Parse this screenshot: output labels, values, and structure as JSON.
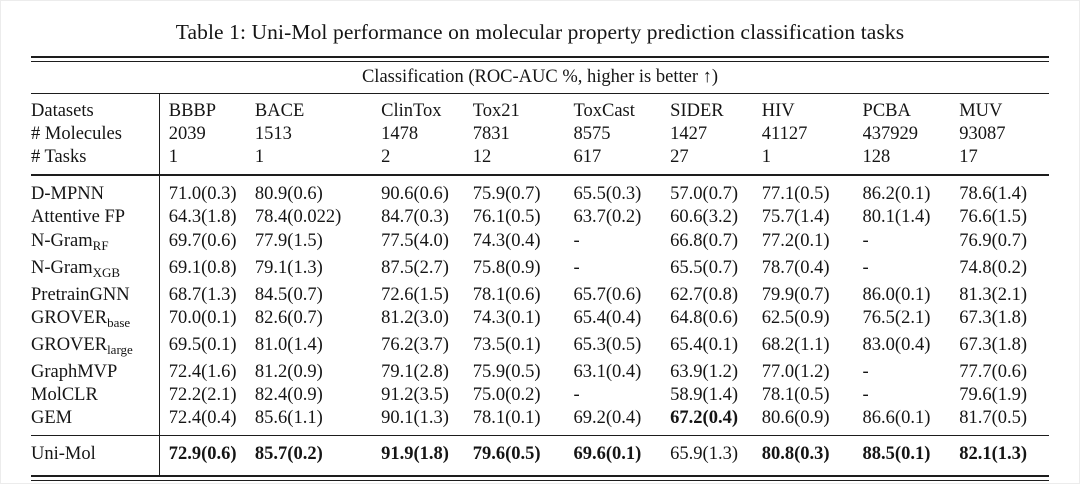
{
  "caption": "Table 1: Uni-Mol performance on molecular property prediction classification tasks",
  "subtitle": "Classification (ROC-AUC %, higher is better ↑)",
  "colors": {
    "background": "#ffffff",
    "text": "#151515",
    "rule": "#1d1d1d"
  },
  "header": {
    "row_labels": [
      "Datasets",
      "# Molecules",
      "# Tasks"
    ],
    "datasets": [
      {
        "name": "BBBP",
        "molecules": "2039",
        "tasks": "1"
      },
      {
        "name": "BACE",
        "molecules": "1513",
        "tasks": "1"
      },
      {
        "name": "ClinTox",
        "molecules": "1478",
        "tasks": "2"
      },
      {
        "name": "Tox21",
        "molecules": "7831",
        "tasks": "12"
      },
      {
        "name": "ToxCast",
        "molecules": "8575",
        "tasks": "617"
      },
      {
        "name": "SIDER",
        "molecules": "1427",
        "tasks": "27"
      },
      {
        "name": "HIV",
        "molecules": "41127",
        "tasks": "1"
      },
      {
        "name": "PCBA",
        "molecules": "437929",
        "tasks": "128"
      },
      {
        "name": "MUV",
        "molecules": "93087",
        "tasks": "17"
      }
    ]
  },
  "rows": [
    {
      "label": "D-MPNN",
      "sub": "",
      "values": [
        "71.0(0.3)",
        "80.9(0.6)",
        "90.6(0.6)",
        "75.9(0.7)",
        "65.5(0.3)",
        "57.0(0.7)",
        "77.1(0.5)",
        "86.2(0.1)",
        "78.6(1.4)"
      ],
      "bold": []
    },
    {
      "label": "Attentive FP",
      "sub": "",
      "values": [
        "64.3(1.8)",
        "78.4(0.022)",
        "84.7(0.3)",
        "76.1(0.5)",
        "63.7(0.2)",
        "60.6(3.2)",
        "75.7(1.4)",
        "80.1(1.4)",
        "76.6(1.5)"
      ],
      "bold": []
    },
    {
      "label": "N-Gram",
      "sub": "RF",
      "values": [
        "69.7(0.6)",
        "77.9(1.5)",
        "77.5(4.0)",
        "74.3(0.4)",
        "-",
        "66.8(0.7)",
        "77.2(0.1)",
        "-",
        "76.9(0.7)"
      ],
      "bold": []
    },
    {
      "label": "N-Gram",
      "sub": "XGB",
      "values": [
        "69.1(0.8)",
        "79.1(1.3)",
        "87.5(2.7)",
        "75.8(0.9)",
        "-",
        "65.5(0.7)",
        "78.7(0.4)",
        "-",
        "74.8(0.2)"
      ],
      "bold": []
    },
    {
      "label": "PretrainGNN",
      "sub": "",
      "values": [
        "68.7(1.3)",
        "84.5(0.7)",
        "72.6(1.5)",
        "78.1(0.6)",
        "65.7(0.6)",
        "62.7(0.8)",
        "79.9(0.7)",
        "86.0(0.1)",
        "81.3(2.1)"
      ],
      "bold": []
    },
    {
      "label": "GROVER",
      "sub": "base",
      "values": [
        "70.0(0.1)",
        "82.6(0.7)",
        "81.2(3.0)",
        "74.3(0.1)",
        "65.4(0.4)",
        "64.8(0.6)",
        "62.5(0.9)",
        "76.5(2.1)",
        "67.3(1.8)"
      ],
      "bold": []
    },
    {
      "label": "GROVER",
      "sub": "large",
      "values": [
        "69.5(0.1)",
        "81.0(1.4)",
        "76.2(3.7)",
        "73.5(0.1)",
        "65.3(0.5)",
        "65.4(0.1)",
        "68.2(1.1)",
        "83.0(0.4)",
        "67.3(1.8)"
      ],
      "bold": []
    },
    {
      "label": "GraphMVP",
      "sub": "",
      "values": [
        "72.4(1.6)",
        "81.2(0.9)",
        "79.1(2.8)",
        "75.9(0.5)",
        "63.1(0.4)",
        "63.9(1.2)",
        "77.0(1.2)",
        "-",
        "77.7(0.6)"
      ],
      "bold": []
    },
    {
      "label": "MolCLR",
      "sub": "",
      "values": [
        "72.2(2.1)",
        "82.4(0.9)",
        "91.2(3.5)",
        "75.0(0.2)",
        "-",
        "58.9(1.4)",
        "78.1(0.5)",
        "-",
        "79.6(1.9)"
      ],
      "bold": []
    },
    {
      "label": "GEM",
      "sub": "",
      "values": [
        "72.4(0.4)",
        "85.6(1.1)",
        "90.1(1.3)",
        "78.1(0.1)",
        "69.2(0.4)",
        "67.2(0.4)",
        "80.6(0.9)",
        "86.6(0.1)",
        "81.7(0.5)"
      ],
      "bold": [
        5
      ]
    }
  ],
  "result_row": {
    "label": "Uni-Mol",
    "sub": "",
    "values": [
      "72.9(0.6)",
      "85.7(0.2)",
      "91.9(1.8)",
      "79.6(0.5)",
      "69.6(0.1)",
      "65.9(1.3)",
      "80.8(0.3)",
      "88.5(0.1)",
      "82.1(1.3)"
    ],
    "bold": [
      0,
      1,
      2,
      3,
      4,
      6,
      7,
      8
    ]
  }
}
